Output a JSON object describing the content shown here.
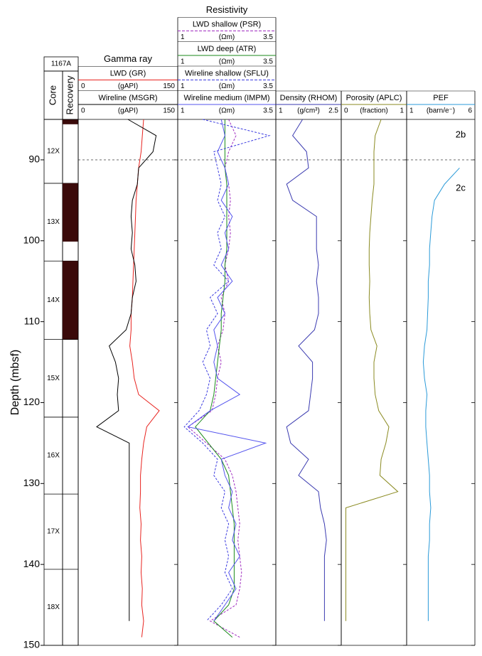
{
  "chart_data": {
    "type": "log",
    "ylabel": "Depth (mbsf)",
    "ylim": [
      85,
      150
    ],
    "yticks": [
      90,
      100,
      110,
      120,
      130,
      140,
      150
    ],
    "site": "1167A",
    "core_header": "Core",
    "recovery_header": "Recovery",
    "recovery_color": "#3a0a0a",
    "cores": [
      {
        "name": "12X",
        "top": 85,
        "bottom": 92.9,
        "recovered": [
          [
            85,
            85.6
          ]
        ]
      },
      {
        "name": "13X",
        "top": 92.9,
        "bottom": 102.5,
        "recovered": [
          [
            92.9,
            100.1
          ]
        ]
      },
      {
        "name": "14X",
        "top": 102.5,
        "bottom": 112.2,
        "recovered": [
          [
            102.5,
            112.2
          ]
        ]
      },
      {
        "name": "15X",
        "top": 112.2,
        "bottom": 121.8,
        "recovered": []
      },
      {
        "name": "16X",
        "top": 121.8,
        "bottom": 131.3,
        "recovered": []
      },
      {
        "name": "17X",
        "top": 131.3,
        "bottom": 140.6,
        "recovered": []
      },
      {
        "name": "18X",
        "top": 140.6,
        "bottom": 150,
        "recovered": []
      }
    ],
    "boundary": 90,
    "annotations": [
      "2b",
      "2c"
    ],
    "depths": [
      85,
      87,
      89,
      91,
      93,
      95,
      97,
      99,
      101,
      103,
      105,
      107,
      109,
      111,
      113,
      115,
      117,
      119,
      121,
      123,
      125,
      127,
      129,
      131,
      133,
      135,
      137,
      139,
      141,
      143,
      145,
      147,
      149
    ],
    "tracks": [
      {
        "title": "Gamma ray",
        "curves": [
          {
            "name": "LWD (GR)",
            "unit": "(gAPI)",
            "xlim": [
              0,
              150
            ],
            "color": "#e8231f",
            "dash": false,
            "values": [
              100,
              98,
              96,
              92,
              90,
              88,
              87,
              86,
              85,
              84,
              83,
              82,
              80,
              80,
              78,
              82,
              85,
              92,
              125,
              105,
              100,
              97,
              95,
              95,
              94,
              96,
              95,
              97,
              96,
              98,
              97,
              100,
              97
            ]
          },
          {
            "name": "Wireline (MSGR)",
            "unit": "(gAPI)",
            "xlim": [
              0,
              150
            ],
            "color": "#000000",
            "dash": false,
            "values": [
              75,
              120,
              115,
              92,
              90,
              82,
              80,
              82,
              80,
              86,
              88,
              82,
              80,
              72,
              45,
              55,
              60,
              58,
              60,
              25,
              77,
              77,
              77,
              77,
              77,
              77,
              77,
              77,
              77,
              77,
              77,
              77,
              null
            ]
          }
        ]
      },
      {
        "title": "Resistivity",
        "curves": [
          {
            "name": "LWD shallow (PSR)",
            "unit": "(Ωm)",
            "xlim": [
              1,
              3.5
            ],
            "color": "#a02cc0",
            "dash": true,
            "values": [
              2.3,
              2.5,
              2.3,
              2.2,
              2.3,
              2.35,
              2.3,
              2.35,
              2.3,
              2.2,
              2.3,
              2.1,
              2.2,
              2.15,
              2.0,
              2.1,
              2.0,
              1.95,
              1.85,
              1.2,
              1.7,
              2.2,
              2.4,
              2.5,
              2.55,
              2.6,
              2.55,
              2.6,
              2.65,
              2.6,
              2.5,
              1.8,
              2.6
            ]
          },
          {
            "name": "LWD deep (ATR)",
            "unit": "(Ωm)",
            "xlim": [
              1,
              3.5
            ],
            "color": "#1a8a1a",
            "dash": false,
            "values": [
              2.2,
              2.2,
              2.2,
              2.2,
              2.25,
              2.25,
              2.25,
              2.25,
              2.25,
              2.2,
              2.2,
              2.15,
              2.1,
              2.1,
              2.05,
              2.0,
              1.95,
              1.9,
              1.8,
              1.4,
              1.75,
              2.1,
              2.3,
              2.35,
              2.4,
              2.45,
              2.45,
              2.45,
              2.45,
              2.45,
              2.3,
              1.9,
              2.4
            ]
          },
          {
            "name": "Wireline shallow (SFLU)",
            "unit": "(Ωm)",
            "xlim": [
              1,
              3.5
            ],
            "color": "#3a3ae0",
            "dash": true,
            "values": [
              1.6,
              3.4,
              1.9,
              2.0,
              2.1,
              2.0,
              2.2,
              2.0,
              2.1,
              1.9,
              2.3,
              1.8,
              2.0,
              1.7,
              1.8,
              1.6,
              1.8,
              1.7,
              1.5,
              1.1,
              1.6,
              2.0,
              1.9,
              2.2,
              2.1,
              2.3,
              2.2,
              2.3,
              2.2,
              2.4,
              2.1,
              1.7,
              null
            ]
          },
          {
            "name": "Wireline medium (IMPM)",
            "unit": "(Ωm)",
            "xlim": [
              1,
              3.5
            ],
            "color": "#5555ee",
            "dash": false,
            "values": [
              2.1,
              2.2,
              2.0,
              2.2,
              2.3,
              2.1,
              2.4,
              2.2,
              2.3,
              2.1,
              2.4,
              2.0,
              2.2,
              1.9,
              2.0,
              1.9,
              2.0,
              2.6,
              1.8,
              1.2,
              3.3,
              2.1,
              2.2,
              2.4,
              2.3,
              2.5,
              2.4,
              2.6,
              2.3,
              2.5,
              2.2,
              1.9,
              null
            ]
          }
        ]
      },
      {
        "curves": [
          {
            "name": "Density (RHOM)",
            "unit": "(g/cm³)",
            "xlim": [
              1,
              2.5
            ],
            "color": "#3a3ab0",
            "dash": false,
            "values": [
              1.6,
              1.35,
              1.7,
              1.75,
              1.2,
              1.35,
              1.95,
              1.95,
              1.95,
              2.0,
              1.95,
              2.0,
              2.0,
              1.9,
              1.5,
              1.85,
              1.85,
              1.8,
              1.75,
              1.2,
              1.3,
              1.75,
              1.5,
              2.0,
              2.05,
              2.15,
              2.2,
              2.15,
              2.15,
              2.15,
              2.15,
              2.15,
              null
            ]
          }
        ]
      },
      {
        "curves": [
          {
            "name": "Porosity (APLC)",
            "unit": "(fraction)",
            "xlim": [
              0,
              1
            ],
            "color": "#8a8a20",
            "dash": false,
            "values": [
              0.62,
              0.52,
              0.5,
              0.5,
              0.5,
              0.47,
              0.45,
              0.43,
              0.42,
              0.42,
              0.43,
              0.42,
              0.43,
              0.45,
              0.55,
              0.5,
              0.5,
              0.52,
              0.58,
              0.75,
              0.7,
              0.62,
              0.6,
              0.9,
              0.03,
              0.03,
              0.03,
              0.03,
              0.03,
              0.03,
              0.03,
              0.03,
              null
            ]
          }
        ]
      },
      {
        "curves": [
          {
            "name": "PEF",
            "unit": "(barn/e⁻)",
            "xlim": [
              1,
              6
            ],
            "color": "#2a9ad8",
            "dash": false,
            "values": [
              null,
              null,
              null,
              5.0,
              3.8,
              3.0,
              2.8,
              2.7,
              2.6,
              2.6,
              2.5,
              2.5,
              2.45,
              2.4,
              2.2,
              2.1,
              2.2,
              2.4,
              2.3,
              2.3,
              2.4,
              2.5,
              2.6,
              2.6,
              2.7,
              2.6,
              2.6,
              2.5,
              2.5,
              2.5,
              2.5,
              2.5,
              null
            ]
          }
        ]
      }
    ]
  }
}
